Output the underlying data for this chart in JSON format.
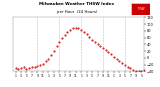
{
  "title": "Milwaukee Weather THSW Index",
  "subtitle": "per Hour  (24 Hours)",
  "bg_color": "#ffffff",
  "plot_bg_color": "#ffffff",
  "line_color": "#cc0000",
  "grid_color": "#aaaaaa",
  "text_color": "#000000",
  "legend_box_color": "#cc0000",
  "legend_text_color": "#ffffff",
  "ylim": [
    -40,
    120
  ],
  "yticks": [
    -40,
    -20,
    0,
    20,
    40,
    60,
    80,
    100,
    120
  ],
  "ytick_labels": [
    "-40",
    "-20",
    "0",
    "20",
    "40",
    "60",
    "80",
    "100",
    "120"
  ],
  "values": [
    -30,
    -32,
    -30,
    -28,
    -32,
    -30,
    -28,
    -28,
    -25,
    -22,
    -18,
    -10,
    -2,
    8,
    20,
    35,
    48,
    58,
    68,
    76,
    82,
    88,
    90,
    88,
    84,
    78,
    70,
    62,
    54,
    46,
    40,
    34,
    28,
    22,
    16,
    10,
    4,
    -2,
    -8,
    -14,
    -20,
    -26,
    -30,
    -35,
    -38,
    -40,
    -38,
    -36
  ],
  "n_points": 48,
  "vgrid_positions": [
    8,
    16,
    24,
    32,
    40
  ],
  "xtick_positions": [
    0,
    2,
    4,
    6,
    8,
    10,
    12,
    14,
    16,
    18,
    20,
    22,
    24,
    26,
    28,
    30,
    32,
    34,
    36,
    38,
    40,
    42,
    44,
    46
  ],
  "xtick_labels": [
    "1",
    "3",
    "5",
    "7",
    "9",
    "11",
    "1",
    "3",
    "5",
    "7",
    "9",
    "11",
    "1",
    "3",
    "5",
    "7",
    "9",
    "11",
    "1",
    "3",
    "5",
    "7",
    "9",
    "5"
  ]
}
